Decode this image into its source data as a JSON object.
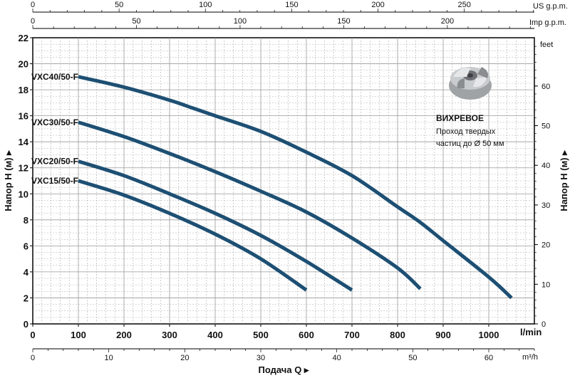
{
  "chart_data": {
    "type": "line",
    "title": "",
    "xlabel": "Подача Q",
    "ylabel": "Напор H (м)",
    "x_unit": "l/min",
    "xlim": [
      0,
      1100
    ],
    "ylim": [
      0,
      22
    ],
    "grid": true,
    "x_ticks": [
      0,
      100,
      200,
      300,
      400,
      500,
      600,
      700,
      800,
      900,
      1000
    ],
    "y_ticks": [
      0,
      2,
      4,
      6,
      8,
      10,
      12,
      14,
      16,
      18,
      20,
      22
    ],
    "secondary_axes": {
      "us_gpm": {
        "label": "US g.p.m.",
        "ticks": [
          0,
          50,
          100,
          150,
          200,
          250
        ]
      },
      "imp_gpm": {
        "label": "Imp g.p.m.",
        "ticks": [
          0,
          50,
          100,
          150,
          200
        ]
      },
      "m3h": {
        "label": "m³/h",
        "ticks": [
          0,
          10,
          20,
          30,
          40,
          50,
          60
        ]
      },
      "feet": {
        "label": "feet",
        "ticks": [
          0,
          10,
          20,
          30,
          40,
          50,
          60
        ]
      }
    },
    "series": [
      {
        "name": "VXC40/50-F",
        "x": [
          100,
          200,
          300,
          350,
          400,
          500,
          600,
          700,
          800,
          850,
          900,
          1000,
          1050
        ],
        "y": [
          19.0,
          18.2,
          17.2,
          16.6,
          16.0,
          14.8,
          13.2,
          11.4,
          9.0,
          7.8,
          6.4,
          3.6,
          2.0
        ]
      },
      {
        "name": "VXC30/50-F",
        "x": [
          100,
          200,
          300,
          400,
          500,
          600,
          700,
          800,
          850
        ],
        "y": [
          15.5,
          14.4,
          13.1,
          11.7,
          10.2,
          8.6,
          6.6,
          4.3,
          2.7
        ]
      },
      {
        "name": "VXC20/50-F",
        "x": [
          100,
          200,
          300,
          400,
          500,
          600,
          700
        ],
        "y": [
          12.5,
          11.4,
          10.0,
          8.5,
          6.8,
          4.8,
          2.6
        ]
      },
      {
        "name": "VXC15/50-F",
        "x": [
          100,
          200,
          300,
          400,
          500,
          600
        ],
        "y": [
          11.0,
          9.9,
          8.5,
          6.9,
          5.0,
          2.6
        ]
      }
    ],
    "annotation": {
      "title": "ВИХРЕВОЕ",
      "line1": "Проход твердых",
      "line2": "частиц до Ø 50 мм"
    },
    "colors": {
      "curve": "#1d4f73",
      "grid": "#9a9a9a",
      "axis": "#000000"
    }
  }
}
